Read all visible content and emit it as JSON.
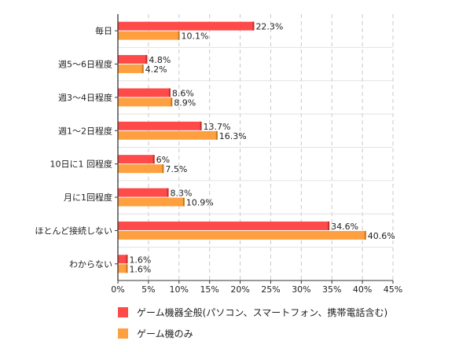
{
  "chart_data": {
    "type": "bar",
    "orientation": "horizontal",
    "categories": [
      "毎日",
      "週5〜6日程度",
      "週3〜4日程度",
      "週1〜2日程度",
      "10日に1 回程度",
      "月に1回程度",
      "ほとんど接続しない",
      "わからない"
    ],
    "series": [
      {
        "name": "ゲーム機器全般(パソコン、スマートフォン、携帯電話含む)",
        "color": "#ff4a4a",
        "values": [
          22.3,
          4.8,
          8.6,
          13.7,
          6,
          8.3,
          34.6,
          1.6
        ],
        "labels": [
          "22.3%",
          "4.8%",
          "8.6%",
          "13.7%",
          "6%",
          "8.3%",
          "34.6%",
          "1.6%"
        ]
      },
      {
        "name": "ゲーム機のみ",
        "color": "#ffa040",
        "values": [
          10.1,
          4.2,
          8.9,
          16.3,
          7.5,
          10.9,
          40.6,
          1.6
        ],
        "labels": [
          "10.1%",
          "4.2%",
          "8.9%",
          "16.3%",
          "7.5%",
          "10.9%",
          "40.6%",
          "1.6%"
        ]
      }
    ],
    "xlim": [
      0,
      45
    ],
    "xticks": [
      0,
      5,
      10,
      15,
      20,
      25,
      30,
      35,
      40,
      45
    ],
    "xtick_labels": [
      "0%",
      "5%",
      "10%",
      "15%",
      "20%",
      "25%",
      "30%",
      "35%",
      "40%",
      "45%"
    ],
    "grid": true,
    "legend_position": "bottom"
  }
}
